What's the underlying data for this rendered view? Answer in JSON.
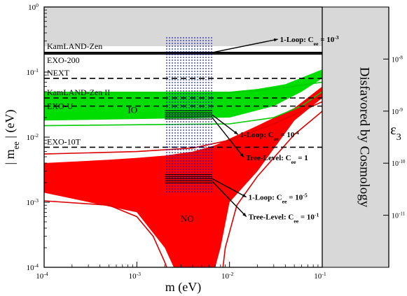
{
  "chart_data": {
    "type": "line",
    "title": "",
    "xlabel": "m (eV)",
    "ylabel": "| m_ee | (eV)",
    "y2label": "ε_3",
    "x_scale": "log",
    "y_scale": "log",
    "xlim": [
      0.0001,
      0.1
    ],
    "ylim": [
      0.0001,
      1
    ],
    "y2lim": [
      1e-12,
      1e-07
    ],
    "grid": false,
    "x_ticks": [
      {
        "value": 0.0001,
        "base": "10",
        "exp": "-4"
      },
      {
        "value": 0.001,
        "base": "10",
        "exp": "-3"
      },
      {
        "value": 0.01,
        "base": "10",
        "exp": "-2"
      },
      {
        "value": 0.1,
        "base": "10",
        "exp": "-1"
      }
    ],
    "y_ticks": [
      {
        "value": 0.0001,
        "base": "10",
        "exp": "-4"
      },
      {
        "value": 0.001,
        "base": "10",
        "exp": "-3"
      },
      {
        "value": 0.01,
        "base": "10",
        "exp": "-2"
      },
      {
        "value": 0.1,
        "base": "10",
        "exp": "-1"
      },
      {
        "value": 1,
        "base": "10",
        "exp": "0"
      }
    ],
    "y2_ticks": [
      {
        "value": 1e-11,
        "base": "10",
        "exp": "-11"
      },
      {
        "value": 1e-10,
        "base": "10",
        "exp": "-10"
      },
      {
        "value": 1e-09,
        "base": "10",
        "exp": "-9"
      },
      {
        "value": 1e-08,
        "base": "10",
        "exp": "-8"
      }
    ],
    "experiment_limits": [
      {
        "label": "KamLAND-Zen",
        "value": 0.2,
        "style": "solid"
      },
      {
        "label": "EXO-200",
        "value": 0.19,
        "style": "solid"
      },
      {
        "label": "NEXT",
        "value": 0.08,
        "style": "dashed"
      },
      {
        "label": "KamLAND-Zen II",
        "value": 0.04,
        "style": "dashed"
      },
      {
        "label": "EXO-U",
        "value": 0.03,
        "style": "dashed"
      },
      {
        "label": "EXO-10T",
        "value": 0.007,
        "style": "dashed"
      }
    ],
    "regions": [
      {
        "label": "IO",
        "color": "#00dd00",
        "lower": [
          [
            0.0001,
            0.018
          ],
          [
            0.01,
            0.02
          ],
          [
            0.03,
            0.03
          ],
          [
            0.06,
            0.05
          ],
          [
            0.1,
            0.08
          ]
        ],
        "upper": [
          [
            0.0001,
            0.05
          ],
          [
            0.01,
            0.05
          ],
          [
            0.02,
            0.055
          ],
          [
            0.04,
            0.065
          ],
          [
            0.1,
            0.11
          ]
        ]
      },
      {
        "label": "NO",
        "color": "#ff0000",
        "lower": [
          [
            0.0001,
            0.0014
          ],
          [
            0.001,
            0.0007
          ],
          [
            0.002,
            0.0002
          ],
          [
            0.0025,
            0.0001
          ],
          [
            0.007,
            0.0001
          ],
          [
            0.008,
            0.0002
          ],
          [
            0.01,
            0.001
          ],
          [
            0.02,
            0.003
          ],
          [
            0.05,
            0.018
          ],
          [
            0.1,
            0.04
          ]
        ],
        "upper": [
          [
            0.0001,
            0.004
          ],
          [
            0.0005,
            0.0045
          ],
          [
            0.001,
            0.0048
          ],
          [
            0.002,
            0.0052
          ],
          [
            0.004,
            0.006
          ],
          [
            0.007,
            0.0075
          ],
          [
            0.02,
            0.015
          ],
          [
            0.05,
            0.028
          ],
          [
            0.1,
            0.06
          ]
        ]
      }
    ],
    "outline_curves": [
      {
        "color": "#00cc00",
        "points": [
          [
            0.0001,
            0.015
          ],
          [
            0.01,
            0.016
          ],
          [
            0.03,
            0.02
          ],
          [
            0.06,
            0.03
          ],
          [
            0.1,
            0.05
          ]
        ]
      },
      {
        "color": "#00cc00",
        "points": [
          [
            0.0001,
            0.048
          ],
          [
            0.01,
            0.048
          ],
          [
            0.02,
            0.052
          ],
          [
            0.04,
            0.058
          ],
          [
            0.1,
            0.07
          ]
        ]
      },
      {
        "color": "#dd0000",
        "points": [
          [
            0.0001,
            0.0055
          ],
          [
            0.001,
            0.006
          ],
          [
            0.004,
            0.0068
          ],
          [
            0.01,
            0.009
          ],
          [
            0.03,
            0.016
          ],
          [
            0.1,
            0.035
          ]
        ]
      },
      {
        "color": "#dd0000",
        "points": [
          [
            0.0001,
            0.00105
          ],
          [
            0.0005,
            0.0009
          ],
          [
            0.001,
            0.0006
          ],
          [
            0.0015,
            0.0003
          ],
          [
            0.002,
            0.00012
          ],
          [
            0.0021,
            0.0001
          ]
        ]
      },
      {
        "color": "#dd0000",
        "points": [
          [
            0.0085,
            0.0001
          ],
          [
            0.009,
            0.0002
          ],
          [
            0.012,
            0.0009
          ],
          [
            0.02,
            0.0025
          ],
          [
            0.05,
            0.011
          ],
          [
            0.1,
            0.025
          ]
        ]
      }
    ],
    "dotted_box": {
      "xrange": [
        0.002,
        0.0065
      ],
      "yrange": [
        0.0014,
        0.35
      ],
      "color": "#0000cc"
    },
    "loop_lines": [
      {
        "y": 0.022,
        "xrange": [
          0.002,
          0.0065
        ]
      },
      {
        "y": 0.0023,
        "xrange": [
          0.002,
          0.0065
        ]
      }
    ],
    "disfavored_region": {
      "xrange": [
        0.1,
        0.2
      ],
      "label": "Disfavored by Cosmology",
      "color": "#d8d8d8"
    },
    "top_shade": {
      "yrange": [
        0.25,
        1
      ],
      "color": "#d8d8d8"
    },
    "annotations": [
      {
        "text": "1-Loop: C",
        "sub": "ee",
        "eq": " = 10",
        "sup": "-3",
        "from": [
          0.0065,
          0.2
        ],
        "text_at": [
          0.035,
          0.32
        ]
      },
      {
        "text": "1-Loop: C",
        "sub": "ee",
        "eq": " = 10",
        "sup": "-4",
        "from": [
          0.0065,
          0.022
        ],
        "text_at": [
          0.013,
          0.011
        ]
      },
      {
        "text": "Tree-Level: C",
        "sub": "ee",
        "eq": " = 1",
        "sup": "",
        "from": [
          0.0065,
          0.02
        ],
        "text_at": [
          0.015,
          0.0049
        ]
      },
      {
        "text": "1-Loop: C",
        "sub": "ee",
        "eq": " = 10",
        "sup": "-5",
        "from": [
          0.0065,
          0.0023
        ],
        "text_at": [
          0.016,
          0.0012
        ]
      },
      {
        "text": "Tree-Level: C",
        "sub": "ee",
        "eq": " = 10",
        "sup": "-1",
        "from": [
          0.0065,
          0.0021
        ],
        "text_at": [
          0.016,
          0.0006
        ]
      }
    ]
  }
}
